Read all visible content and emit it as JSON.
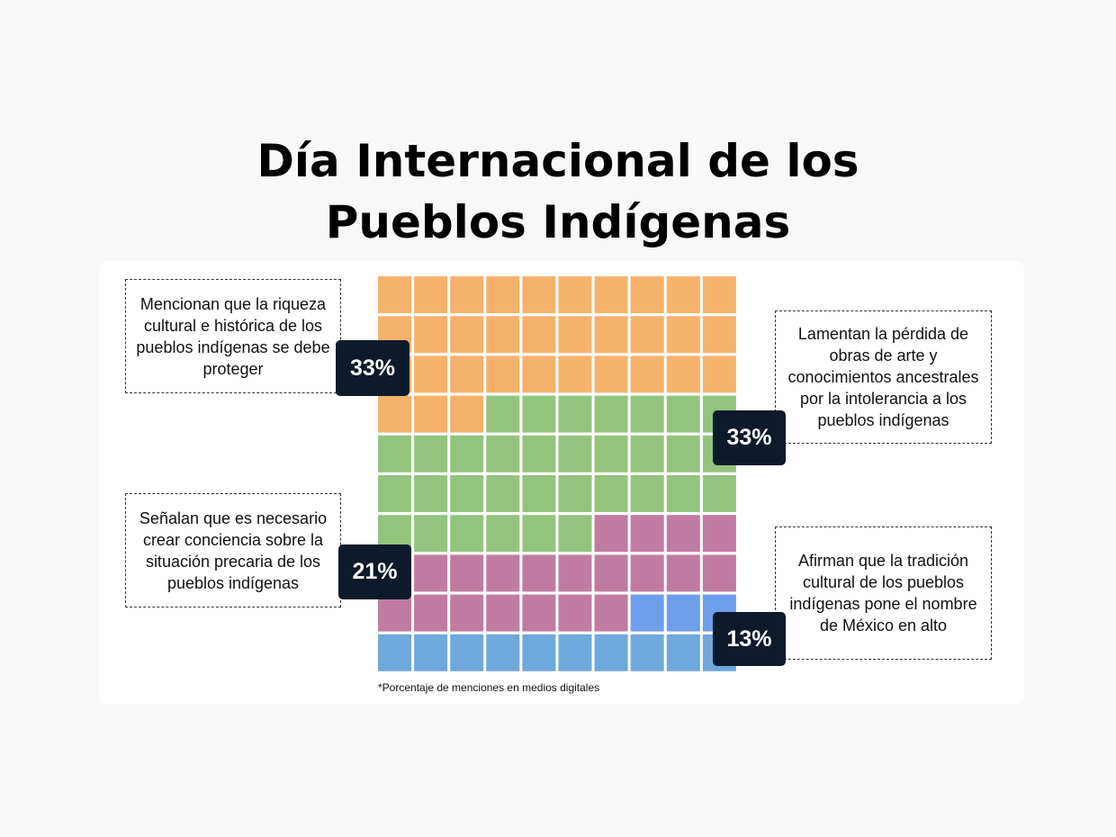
{
  "title_line1": "Día Internacional de los",
  "title_line2": "Pueblos Indígenas",
  "chart_data": {
    "type": "waffle",
    "grid": [
      10,
      10
    ],
    "categories": [
      {
        "label": "Mencionan que la riqueza cultural  e histórica de los pueblos indígenas se debe proteger",
        "value": 33,
        "value_label": "33%",
        "color": "#f6b26b"
      },
      {
        "label": "Lamentan la pérdida de obras de arte y conocimientos ancestrales por la intolerancia a los pueblos indígenas",
        "value": 33,
        "value_label": "33%",
        "color": "#93c47d"
      },
      {
        "label": "Señalan que es necesario crear conciencia sobre la situación precaria de los pueblos indígenas",
        "value": 21,
        "value_label": "21%",
        "color": "#c27ba0"
      },
      {
        "label": "Afirman que la tradición cultural de los pueblos indígenas pone el nombre de México en alto",
        "value": 13,
        "value_label": "13%",
        "color": "#6fa8dc",
        "alt_color": "#6d9eeb"
      }
    ],
    "footnote": "*Porcentaje de menciones en medios digitales"
  }
}
